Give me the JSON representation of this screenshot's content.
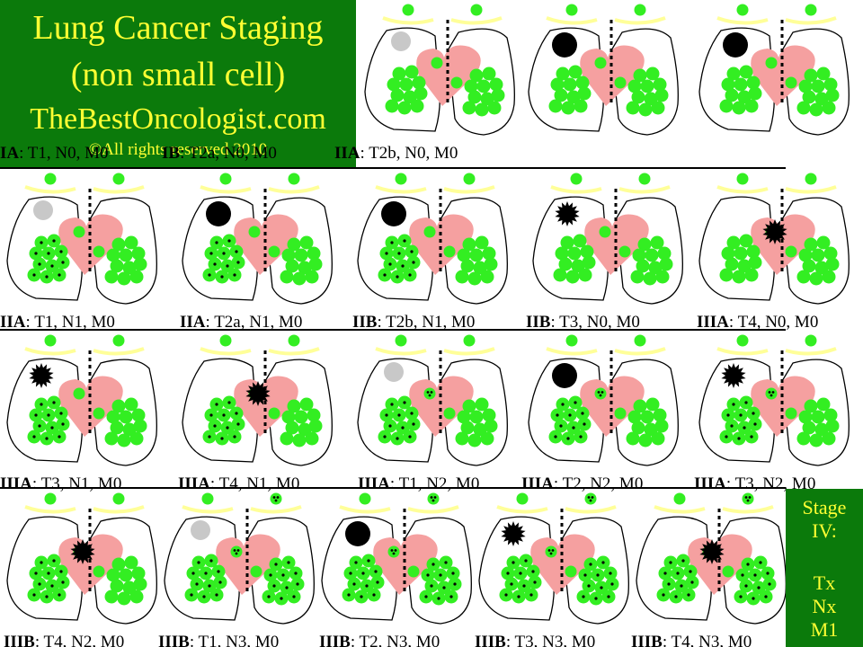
{
  "title": {
    "line1": "Lung Cancer Staging",
    "line2": "(non small cell)",
    "site": "TheBestOncologist.com",
    "copyright": "©All rights reserved 2010"
  },
  "stage_iv": {
    "line1": "Stage",
    "line2": "IV:",
    "tx": "Tx",
    "nx": "Nx",
    "m1": "M1"
  },
  "colors": {
    "title_bg": "#0b7a0b",
    "title_text": "#ffff33",
    "node": "#33ee22",
    "heart": "#f5a0a0",
    "tumor_small": "#c8c8c8",
    "tumor": "#000000",
    "trachea": "#ffff99"
  },
  "panels": [
    {
      "stage": "IA",
      "tnm": ": T1, N0, M0",
      "t": "T1",
      "n": 0
    },
    {
      "stage": "IB",
      "tnm": ": T2a, N0, M0",
      "t": "T2",
      "n": 0
    },
    {
      "stage": "IIA",
      "tnm": ": T2b, N0, M0",
      "t": "T2",
      "n": 0
    },
    {
      "stage": "IIA",
      "tnm": ": T1, N1, M0",
      "t": "T1",
      "n": 1
    },
    {
      "stage": "IIA",
      "tnm": ": T2a, N1, M0",
      "t": "T2",
      "n": 1
    },
    {
      "stage": "IIB",
      "tnm": ": T2b, N1, M0",
      "t": "T2",
      "n": 1
    },
    {
      "stage": "IIB",
      "tnm": ": T3, N0, M0",
      "t": "T3",
      "n": 0
    },
    {
      "stage": "IIIA",
      "tnm": ": T4, N0, M0",
      "t": "T4",
      "n": 0
    },
    {
      "stage": "IIIA",
      "tnm": ": T3, N1, M0",
      "t": "T3",
      "n": 1
    },
    {
      "stage": "IIIA",
      "tnm": ": T4, N1, M0",
      "t": "T4",
      "n": 1
    },
    {
      "stage": "IIIA",
      "tnm": ": T1, N2, M0",
      "t": "T1",
      "n": 2
    },
    {
      "stage": "IIIA",
      "tnm": ": T2, N2, M0",
      "t": "T2",
      "n": 2
    },
    {
      "stage": "IIIA",
      "tnm": ": T3, N2, M0",
      "t": "T3",
      "n": 2
    },
    {
      "stage": "IIIB",
      "tnm": ": T4, N2, M0",
      "t": "T4",
      "n": 2
    },
    {
      "stage": "IIIB",
      "tnm": ": T1, N3, M0",
      "t": "T1",
      "n": 3
    },
    {
      "stage": "IIIB",
      "tnm": ": T2, N3, M0",
      "t": "T2",
      "n": 3
    },
    {
      "stage": "IIIB",
      "tnm": ": T3, N3, M0",
      "t": "T3",
      "n": 3
    },
    {
      "stage": "IIIB",
      "tnm": ": T4, N3, M0",
      "t": "T4",
      "n": 3
    }
  ]
}
